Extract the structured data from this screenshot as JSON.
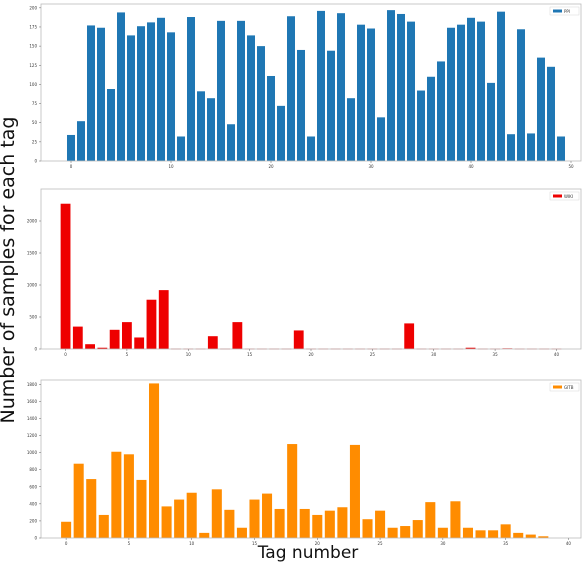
{
  "figure": {
    "ylabel": "Number of samples for each tag",
    "xlabel": "Tag number"
  },
  "chart_data": [
    {
      "type": "bar",
      "legend": "PPI",
      "legend_position": "top-right",
      "color": "#1f77b4",
      "grid": false,
      "xlim": [
        -3,
        51
      ],
      "ylim": [
        0,
        205
      ],
      "xticks": [
        0,
        10,
        20,
        30,
        40,
        50
      ],
      "yticks": [
        0,
        25,
        50,
        75,
        100,
        125,
        150,
        175,
        200
      ],
      "xtick_labels": [
        "0",
        "10",
        "20",
        "30",
        "40",
        "50"
      ],
      "ytick_labels": [
        "0",
        "25",
        "50",
        "75",
        "100",
        "125",
        "150",
        "175",
        "200"
      ],
      "x": [
        0,
        1,
        2,
        3,
        4,
        5,
        6,
        7,
        8,
        9,
        10,
        11,
        12,
        13,
        14,
        15,
        16,
        17,
        18,
        19,
        20,
        21,
        22,
        23,
        24,
        25,
        26,
        27,
        28,
        29,
        30,
        31,
        32,
        33,
        34,
        35,
        36,
        37,
        38,
        39,
        40,
        41,
        42,
        43,
        44,
        45,
        46,
        47,
        48,
        49
      ],
      "values": [
        34,
        52,
        177,
        174,
        94,
        194,
        164,
        176,
        181,
        187,
        168,
        32,
        188,
        91,
        82,
        183,
        48,
        183,
        164,
        150,
        111,
        72,
        189,
        145,
        32,
        196,
        144,
        193,
        82,
        178,
        173,
        57,
        197,
        192,
        182,
        92,
        110,
        130,
        174,
        178,
        187,
        182,
        102,
        195,
        35,
        172,
        36,
        135,
        123,
        32
      ]
    },
    {
      "type": "bar",
      "legend": "WIKI",
      "legend_position": "top-right",
      "color": "#ee0000",
      "grid": false,
      "xlim": [
        -2,
        42
      ],
      "ylim": [
        0,
        2500
      ],
      "xticks": [
        0,
        5,
        10,
        15,
        20,
        25,
        30,
        35,
        40
      ],
      "yticks": [
        0,
        500,
        1000,
        1500,
        2000
      ],
      "xtick_labels": [
        "0",
        "5",
        "10",
        "15",
        "20",
        "25",
        "30",
        "35",
        "40"
      ],
      "ytick_labels": [
        "0",
        "500",
        "1000",
        "1500",
        "2000"
      ],
      "x": [
        0,
        1,
        2,
        3,
        4,
        5,
        6,
        7,
        8,
        9,
        10,
        11,
        12,
        13,
        14,
        15,
        16,
        17,
        18,
        19,
        20,
        21,
        22,
        23,
        24,
        25,
        26,
        27,
        28,
        29,
        30,
        31,
        32,
        33,
        34,
        35,
        36,
        37,
        38,
        39,
        40
      ],
      "values": [
        2270,
        350,
        75,
        20,
        300,
        420,
        180,
        770,
        920,
        5,
        5,
        5,
        200,
        5,
        420,
        5,
        5,
        5,
        5,
        290,
        5,
        5,
        5,
        5,
        5,
        5,
        5,
        5,
        400,
        5,
        5,
        5,
        5,
        20,
        5,
        5,
        10,
        5,
        5,
        5,
        5
      ]
    },
    {
      "type": "bar",
      "legend": "GITB",
      "legend_position": "top-right",
      "color": "#ff8c00",
      "grid": false,
      "xlim": [
        -2,
        41
      ],
      "ylim": [
        0,
        1850
      ],
      "xticks": [
        0,
        5,
        10,
        15,
        20,
        25,
        30,
        35,
        40
      ],
      "yticks": [
        0,
        200,
        400,
        600,
        800,
        1000,
        1200,
        1400,
        1600,
        1800
      ],
      "xtick_labels": [
        "0",
        "5",
        "10",
        "15",
        "20",
        "25",
        "30",
        "35",
        "40"
      ],
      "ytick_labels": [
        "0",
        "200",
        "400",
        "600",
        "800",
        "1000",
        "1200",
        "1400",
        "1600",
        "1800"
      ],
      "x": [
        0,
        1,
        2,
        3,
        4,
        5,
        6,
        7,
        8,
        9,
        10,
        11,
        12,
        13,
        14,
        15,
        16,
        17,
        18,
        19,
        20,
        21,
        22,
        23,
        24,
        25,
        26,
        27,
        28,
        29,
        30,
        31,
        32,
        33,
        34,
        35,
        36,
        37,
        38
      ],
      "values": [
        190,
        870,
        690,
        270,
        1010,
        980,
        680,
        1810,
        370,
        450,
        530,
        60,
        570,
        330,
        120,
        450,
        520,
        340,
        1100,
        340,
        270,
        320,
        360,
        1090,
        220,
        320,
        120,
        140,
        210,
        420,
        120,
        430,
        120,
        90,
        90,
        160,
        60,
        40,
        20
      ]
    }
  ]
}
